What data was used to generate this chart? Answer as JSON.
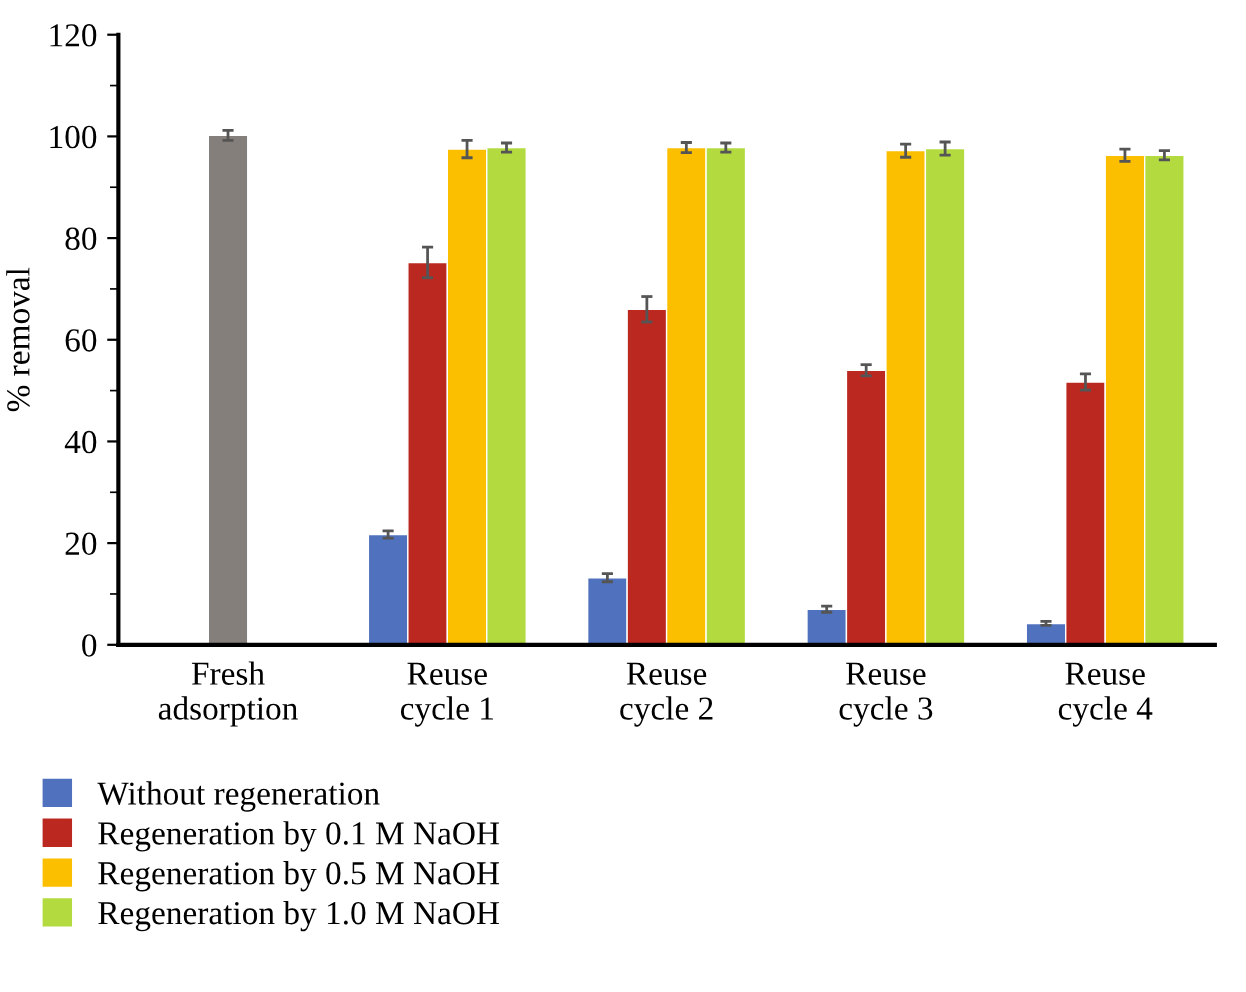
{
  "chart_data": {
    "type": "bar",
    "ylabel": "% removal",
    "categories": [
      "Fresh\nadsorption",
      "Reuse\ncycle 1",
      "Reuse\ncycle 2",
      "Reuse\ncycle 3",
      "Reuse\ncycle 4"
    ],
    "series": [
      {
        "color": "#847f7b",
        "values": [
          100.2,
          null,
          null,
          null,
          null
        ],
        "errors": [
          1,
          null,
          null,
          null,
          null
        ]
      },
      {
        "name": "Without regeneration",
        "color": "#5072be",
        "values": [
          null,
          21.7,
          13.2,
          7,
          4.2
        ],
        "errors": [
          null,
          0.7,
          0.8,
          0.6,
          0.4
        ]
      },
      {
        "name": "Regeneration by 0.1 M NaOH",
        "color": "#bb2820",
        "values": [
          null,
          75.2,
          66,
          54,
          51.7
        ],
        "errors": [
          null,
          3,
          2.5,
          1.1,
          1.6
        ]
      },
      {
        "name": "Regeneration by 0.5 M NaOH",
        "color": "#fbbf00",
        "values": [
          null,
          97.5,
          97.8,
          97.2,
          96.3
        ],
        "errors": [
          null,
          1.7,
          1,
          1.3,
          1.2
        ]
      },
      {
        "name": "Regeneration by 1.0 M NaOH",
        "color": "#b3db40",
        "values": [
          null,
          97.8,
          97.8,
          97.6,
          96.3
        ],
        "errors": [
          null,
          0.9,
          0.9,
          1.3,
          0.9
        ]
      }
    ],
    "ylim": [
      0,
      120
    ],
    "yticks": [
      0,
      {
        "value": 10,
        "label": null
      },
      20,
      {
        "value": 30,
        "label": null
      },
      40,
      {
        "value": 50,
        "label": null
      },
      60,
      {
        "value": 70,
        "label": null
      },
      80,
      {
        "value": 90,
        "label": null
      },
      100,
      {
        "value": 110,
        "label": null
      },
      120
    ],
    "grid": false,
    "legend": "bottom"
  }
}
